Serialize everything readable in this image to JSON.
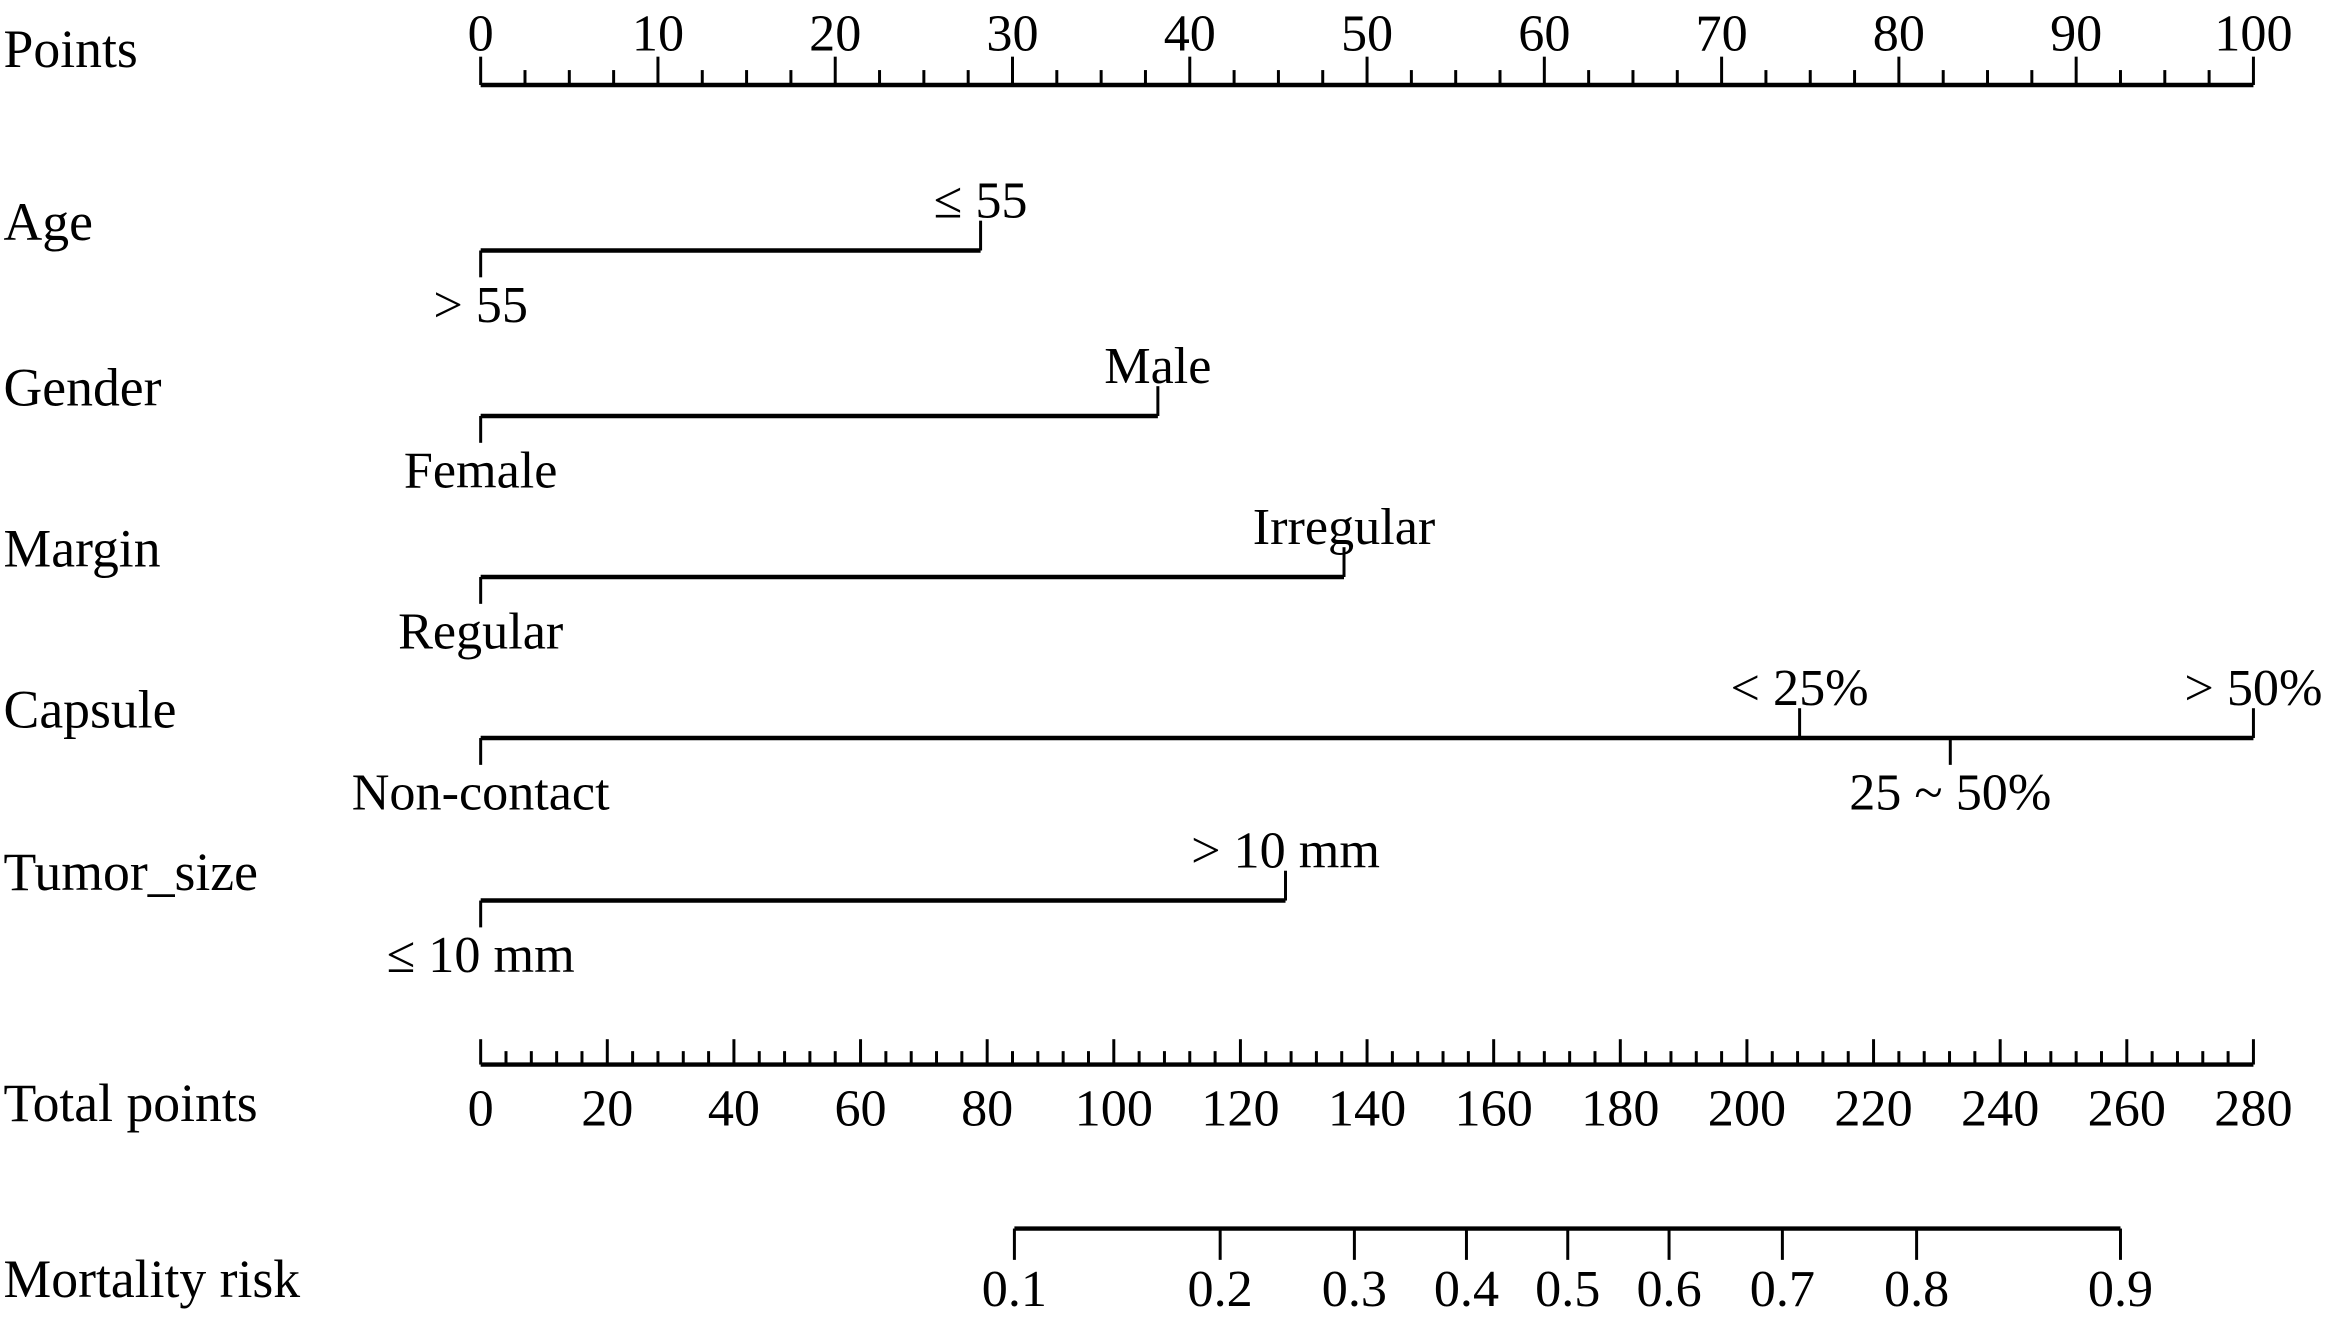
{
  "chart_data": {
    "type": "nomogram",
    "title": "",
    "points_axis": {
      "label": "Points",
      "range": [
        0,
        100
      ],
      "major_step": 10,
      "minor_step": 2.5,
      "tick_labels": [
        "0",
        "10",
        "20",
        "30",
        "40",
        "50",
        "60",
        "70",
        "80",
        "90",
        "100"
      ]
    },
    "variables": [
      {
        "label": "Age",
        "levels": [
          {
            "name": "> 55",
            "points": 0,
            "pos": "below"
          },
          {
            "name": "≤ 55",
            "points": 28.2,
            "pos": "above"
          }
        ]
      },
      {
        "label": "Gender",
        "levels": [
          {
            "name": "Female",
            "points": 0,
            "pos": "below"
          },
          {
            "name": "Male",
            "points": 38.2,
            "pos": "above"
          }
        ]
      },
      {
        "label": "Margin",
        "levels": [
          {
            "name": "Regular",
            "points": 0,
            "pos": "below"
          },
          {
            "name": "Irregular",
            "points": 48.7,
            "pos": "above"
          }
        ]
      },
      {
        "label": "Capsule",
        "levels": [
          {
            "name": "Non-contact",
            "points": 0,
            "pos": "below"
          },
          {
            "name": "< 25%",
            "points": 74.4,
            "pos": "above"
          },
          {
            "name": "25 ~ 50%",
            "points": 82.9,
            "pos": "below"
          },
          {
            "name": "> 50%",
            "points": 100,
            "pos": "above"
          }
        ]
      },
      {
        "label": "Tumor_size",
        "levels": [
          {
            "name": "≤ 10 mm",
            "points": 0,
            "pos": "below"
          },
          {
            "name": "> 10 mm",
            "points": 45.4,
            "pos": "above"
          }
        ]
      }
    ],
    "total_points_axis": {
      "label": "Total points",
      "range": [
        0,
        280
      ],
      "major_step": 20,
      "minor_step": 4,
      "tick_labels": [
        "0",
        "20",
        "40",
        "60",
        "80",
        "100",
        "120",
        "140",
        "160",
        "180",
        "200",
        "220",
        "240",
        "260",
        "280"
      ]
    },
    "risk_axis": {
      "label": "Mortality risk",
      "ticks": [
        {
          "label": "0.1",
          "total_points": 84.3
        },
        {
          "label": "0.2",
          "total_points": 116.8
        },
        {
          "label": "0.3",
          "total_points": 138.0
        },
        {
          "label": "0.4",
          "total_points": 155.7
        },
        {
          "label": "0.5",
          "total_points": 171.7
        },
        {
          "label": "0.6",
          "total_points": 187.7
        },
        {
          "label": "0.7",
          "total_points": 205.6
        },
        {
          "label": "0.8",
          "total_points": 226.8
        },
        {
          "label": "0.9",
          "total_points": 259.0
        }
      ]
    }
  }
}
